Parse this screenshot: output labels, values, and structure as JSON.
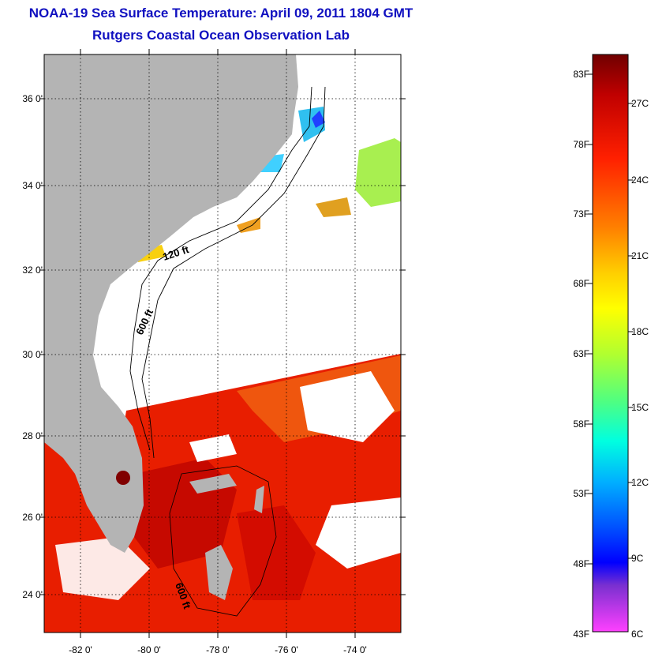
{
  "title": {
    "line1": "NOAA-19 Sea Surface Temperature:  April 09, 2011 1804 GMT",
    "line2": "Rutgers Coastal Ocean Observation Lab"
  },
  "map": {
    "lat_labels": [
      "36 0'",
      "34 0'",
      "32 0'",
      "30 0'",
      "28 0'",
      "26 0'",
      "24 0'"
    ],
    "lon_labels": [
      "-82 0'",
      "-80 0'",
      "-78 0'",
      "-76 0'",
      "-74 0'"
    ],
    "contour_labels": [
      "120 ft",
      "600 ft",
      "600 ft"
    ],
    "colors": {
      "land": "#b4b4b4",
      "cloud": "#ffffff",
      "warm_water": "#e81e00",
      "hot_water": "#c00000"
    }
  },
  "colorbar": {
    "fahrenheit_labels": [
      "83F",
      "78F",
      "73F",
      "68F",
      "63F",
      "58F",
      "53F",
      "48F",
      "43F"
    ],
    "celsius_labels": [
      "27C",
      "24C",
      "21C",
      "18C",
      "15C",
      "12C",
      "9C",
      "6C"
    ],
    "colors": [
      "#800000",
      "#e00000",
      "#ff4000",
      "#ff8c00",
      "#ffd800",
      "#ffff00",
      "#a0ff30",
      "#40ff90",
      "#00ffff",
      "#00a0ff",
      "#0040ff",
      "#0000ff",
      "#8020d0",
      "#ff40ff"
    ]
  }
}
